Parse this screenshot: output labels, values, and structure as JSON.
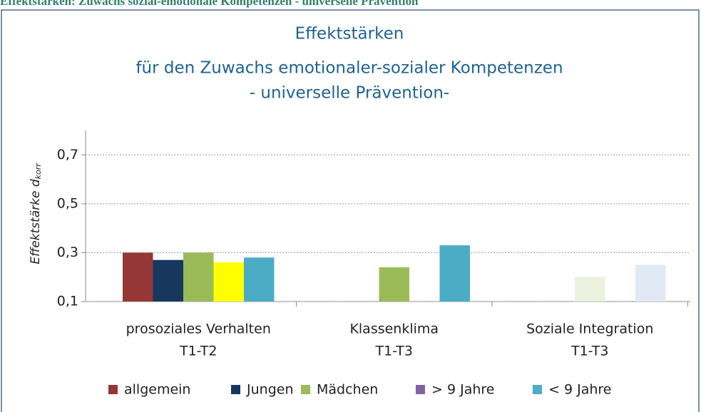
{
  "header": {
    "title": "Effektstärken: Zuwachs sozial-emotionale Kompetenzen - universelle Prävention"
  },
  "chart_data": {
    "type": "bar",
    "title": [
      "Effektstärken",
      "für den Zuwachs emotionaler-sozialer Kompetenzen",
      "- universelle Prävention-"
    ],
    "y_label": {
      "text": "Effektstärke d",
      "subscript": "korr"
    },
    "categories": [
      [
        "prosoziales Verhalten",
        "T1-T2"
      ],
      [
        "Klassenklima",
        "T1-T3"
      ],
      [
        "Soziale Integration",
        "T1-T3"
      ]
    ],
    "series": [
      {
        "name": "allgemein",
        "color": "#953735",
        "values": [
          0.3,
          null,
          null
        ],
        "bar_colors": [
          "#953735",
          null,
          null
        ]
      },
      {
        "name": "Jungen",
        "color": "#17375e",
        "values": [
          0.27,
          null,
          null
        ],
        "bar_colors": [
          "#17375e",
          null,
          null
        ]
      },
      {
        "name": "Mädchen",
        "color": "#9bbb59",
        "values": [
          0.3,
          0.24,
          0.2
        ],
        "bar_colors": [
          "#9bbb59",
          "#9bbb59",
          "#ebf1de"
        ]
      },
      {
        "name": "> 9 Jahre",
        "color": "#8064a2",
        "values": [
          0.26,
          null,
          null
        ],
        "bar_colors": [
          "#ffff00",
          null,
          null
        ]
      },
      {
        "name": "< 9 Jahre",
        "color": "#4bacc6",
        "values": [
          0.28,
          0.33,
          0.25
        ],
        "bar_colors": [
          "#4bacc6",
          "#4bacc6",
          "#e1e9f4"
        ]
      }
    ],
    "ylim": [
      0.1,
      0.8
    ],
    "yticks": [
      {
        "value": 0.1,
        "label": "0,1"
      },
      {
        "value": 0.3,
        "label": "0,3"
      },
      {
        "value": 0.5,
        "label": "0,5"
      },
      {
        "value": 0.7,
        "label": "0,7"
      }
    ],
    "grid": true
  }
}
